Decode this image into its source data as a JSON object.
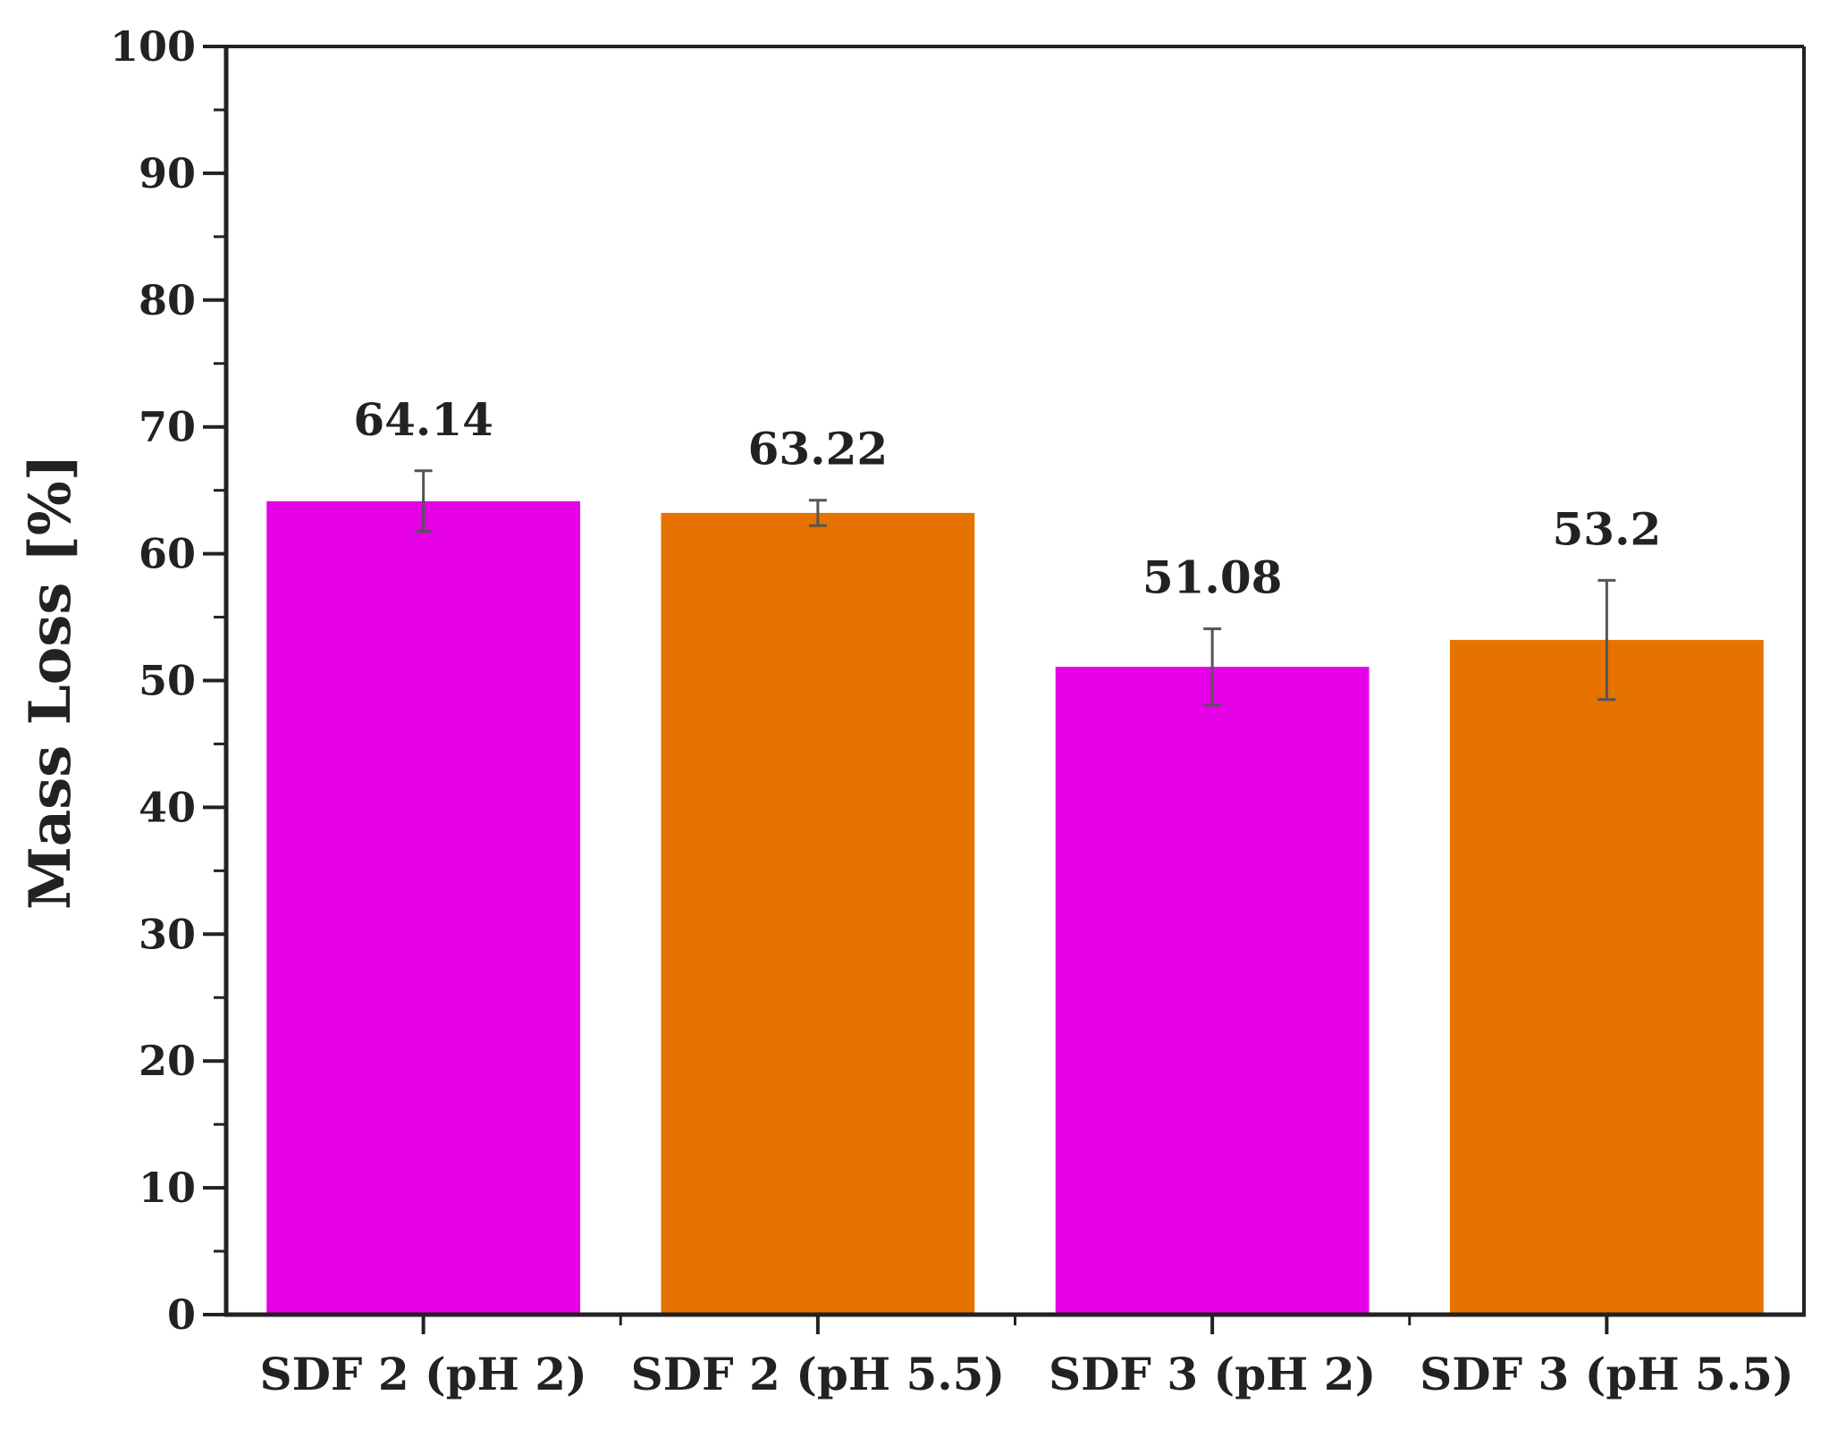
{
  "chart_data": {
    "type": "bar",
    "title": "",
    "xlabel": "",
    "ylabel": "Mass Loss [%]",
    "ylim": [
      0,
      100
    ],
    "yticks": [
      0,
      10,
      20,
      30,
      40,
      50,
      60,
      70,
      80,
      90,
      100
    ],
    "categories": [
      "SDF 2 (pH 2)",
      "SDF 2 (pH 5.5)",
      "SDF 3 (pH 2)",
      "SDF 3 (pH 5.5)"
    ],
    "values": [
      64.14,
      63.22,
      51.08,
      53.2
    ],
    "value_labels": [
      "64.14",
      "63.22",
      "51.08",
      "53.2"
    ],
    "errors": [
      2.4,
      1.0,
      3.0,
      4.7
    ],
    "colors": [
      "#e600e6",
      "#e67300",
      "#e600e6",
      "#e67300"
    ],
    "grid": false,
    "legend": "none"
  }
}
